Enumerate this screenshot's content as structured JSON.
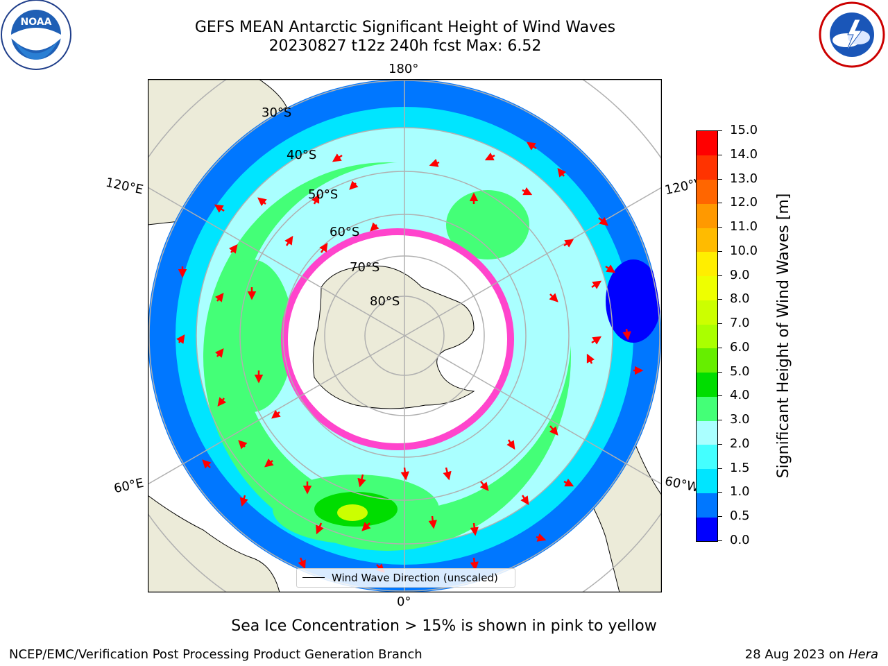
{
  "title": {
    "line1": "GEFS MEAN Antarctic Significant Height of Wind Waves",
    "line2": "20230827 t12z 240h fcst   Max: 6.52"
  },
  "logos": {
    "left": "noaa-logo",
    "left_text": "NOAA",
    "right": "national-weather-service-logo",
    "right_text": "NATIONAL WEATHER SERVICE"
  },
  "map": {
    "projection": "south-polar-stereographic",
    "lon_labels": {
      "top": "180°",
      "bottom": "0°",
      "left_upper": "120°E",
      "left_lower": "60°E",
      "right_upper": "120°W",
      "right_lower": "60°W"
    },
    "lat_labels": [
      "30°S",
      "40°S",
      "50°S",
      "60°S",
      "70°S",
      "80°S"
    ],
    "colors": {
      "land": "#ecebd9",
      "ice": "#ffffff",
      "grid": "#b0b0b0",
      "arrows": "#ff0000",
      "ice_edge": "#ff44cc"
    }
  },
  "legend": {
    "label": "Wind Wave Direction (unscaled)"
  },
  "colorbar": {
    "label": "Significant Height of Wind Waves [m]",
    "ticks": [
      "15.0",
      "14.0",
      "13.0",
      "12.0",
      "11.0",
      "10.0",
      "9.0",
      "8.0",
      "7.0",
      "6.0",
      "5.0",
      "4.0",
      "3.0",
      "2.0",
      "1.5",
      "1.0",
      "0.5",
      "0.0"
    ],
    "colors": [
      "#0000ff",
      "#0077ff",
      "#00e5ff",
      "#44ffff",
      "#aaffff",
      "#44ff77",
      "#00dd00",
      "#66ee00",
      "#aaff00",
      "#ccff00",
      "#eeff00",
      "#ffee00",
      "#ffbb00",
      "#ff9900",
      "#ff6600",
      "#ff3300",
      "#ff0000"
    ]
  },
  "notes": {
    "ice": "Sea Ice Concentration > 15% is shown in pink to yellow",
    "credit": "NCEP/EMC/Verification Post Processing Product Generation Branch",
    "date_prefix": "28 Aug 2023 on ",
    "date_host": "Hera"
  }
}
